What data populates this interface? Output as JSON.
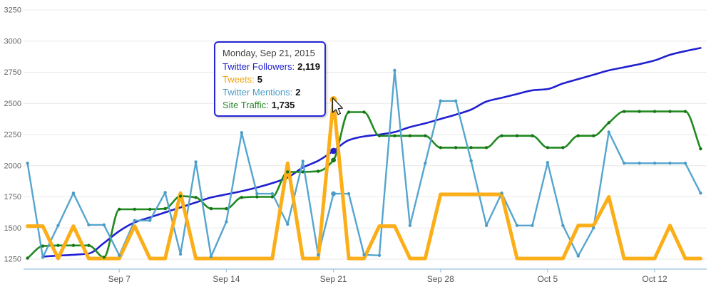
{
  "chart_data": {
    "type": "line",
    "title": "",
    "xlabel": "",
    "ylabel": "",
    "grid": true,
    "legend_position": "none",
    "y_axis": {
      "min": 1250,
      "max": 3250,
      "step": 250,
      "tick_labels": [
        "3250",
        "3000",
        "2750",
        "2500",
        "2250",
        "2000",
        "1750",
        "1500",
        "1250"
      ]
    },
    "x_axis": {
      "tick_labels": [
        "Sep 7",
        "Sep 14",
        "Sep 21",
        "Sep 28",
        "Oct 5",
        "Oct 12"
      ],
      "tick_day_indexes": [
        6,
        13,
        20,
        27,
        34,
        41
      ]
    },
    "categories": [
      "Sep 1",
      "Sep 2",
      "Sep 3",
      "Sep 4",
      "Sep 5",
      "Sep 6",
      "Sep 7",
      "Sep 8",
      "Sep 9",
      "Sep 10",
      "Sep 11",
      "Sep 12",
      "Sep 13",
      "Sep 14",
      "Sep 15",
      "Sep 16",
      "Sep 17",
      "Sep 18",
      "Sep 19",
      "Sep 20",
      "Sep 21",
      "Sep 22",
      "Sep 23",
      "Sep 24",
      "Sep 25",
      "Sep 26",
      "Sep 27",
      "Sep 28",
      "Sep 29",
      "Sep 30",
      "Oct 1",
      "Oct 2",
      "Oct 3",
      "Oct 4",
      "Oct 5",
      "Oct 6",
      "Oct 7",
      "Oct 8",
      "Oct 9",
      "Oct 10",
      "Oct 11",
      "Oct 12",
      "Oct 13",
      "Oct 14",
      "Oct 15"
    ],
    "series": [
      {
        "name": "Twitter Followers",
        "color": "#2020d0",
        "width": 2.6,
        "style": "smooth",
        "markers": "none",
        "values": [
          null,
          1270,
          1278,
          1285,
          1295,
          1380,
          1475,
          1545,
          1585,
          1625,
          1665,
          1705,
          1745,
          1770,
          1795,
          1825,
          1860,
          1905,
          1985,
          2040,
          2119,
          2205,
          2235,
          2250,
          2270,
          2310,
          2340,
          2375,
          2410,
          2450,
          2515,
          2545,
          2575,
          2605,
          2615,
          2660,
          2695,
          2730,
          2765,
          2790,
          2815,
          2845,
          2890,
          2920,
          2945
        ]
      },
      {
        "name": "Site Traffic",
        "color": "#1f8a1f",
        "marker_color": "#157515",
        "width": 2.6,
        "style": "smooth",
        "markers": "all",
        "values": [
          1258,
          1355,
          1360,
          1360,
          1360,
          1265,
          1650,
          1650,
          1650,
          1655,
          1755,
          1745,
          1655,
          1655,
          1745,
          1750,
          1750,
          1950,
          1950,
          1955,
          2045,
          2430,
          2430,
          2240,
          2240,
          2240,
          2240,
          2145,
          2145,
          2145,
          2145,
          2240,
          2240,
          2240,
          2145,
          2145,
          2240,
          2240,
          2345,
          2435,
          2435,
          2435,
          2435,
          2435,
          2135
        ]
      },
      {
        "name": "Twitter Mentions",
        "color": "#55a5ce",
        "marker_color": "#4a9cc6",
        "width": 2.4,
        "style": "linear",
        "markers": "all",
        "values": [
          2020,
          1265,
          1520,
          1780,
          1525,
          1525,
          1280,
          1560,
          1560,
          1785,
          1290,
          2030,
          1270,
          1550,
          2265,
          1775,
          1775,
          1530,
          2035,
          1285,
          1775,
          1775,
          1285,
          1280,
          2765,
          1520,
          2020,
          2520,
          2520,
          2040,
          1520,
          1780,
          1520,
          1520,
          2025,
          1520,
          1275,
          1500,
          2270,
          2020,
          2020,
          2020,
          2020,
          2020,
          1780
        ]
      },
      {
        "name": "Tweets",
        "color": "#fbae17",
        "width": 5,
        "style": "linear",
        "markers": "none",
        "values": [
          1515,
          1515,
          1255,
          1515,
          1255,
          1255,
          1255,
          1515,
          1255,
          1255,
          1780,
          1255,
          1255,
          1255,
          1255,
          1255,
          1255,
          2020,
          1255,
          1255,
          2530,
          1255,
          1255,
          1515,
          1515,
          1255,
          1255,
          1770,
          1770,
          1770,
          1770,
          1770,
          1255,
          1255,
          1255,
          1255,
          1520,
          1520,
          1750,
          1255,
          1255,
          1255,
          1520,
          1255,
          1255
        ]
      }
    ],
    "hover": {
      "day_index": 20,
      "points": [
        {
          "series": "Twitter Followers",
          "value": 2119,
          "color": "#2020d0",
          "r": 4.3
        },
        {
          "series": "Tweets",
          "value": 2530,
          "color": "#fbae17",
          "r": 5
        },
        {
          "series": "Site Traffic",
          "value": 2045,
          "color": "#157515",
          "r": 3.4
        },
        {
          "series": "Twitter Mentions",
          "value": 1775,
          "color": "#4a9cc6",
          "r": 3.4
        }
      ]
    },
    "colors": {
      "grid": "#e8e8e8",
      "axis_line": "#a9cbe2",
      "y_label": "#666666",
      "x_label": "#555555"
    }
  },
  "tooltip": {
    "title": "Monday, Sep 21, 2015",
    "rows": [
      {
        "label": "Twitter Followers:",
        "value": "2,119",
        "color": "#2222cf"
      },
      {
        "label": "Tweets:",
        "value": "5",
        "color": "#f0a513"
      },
      {
        "label": "Twitter Mentions:",
        "value": "2",
        "color": "#4a9cc9"
      },
      {
        "label": "Site Traffic:",
        "value": "1,735",
        "color": "#2b8a2b"
      }
    ]
  }
}
